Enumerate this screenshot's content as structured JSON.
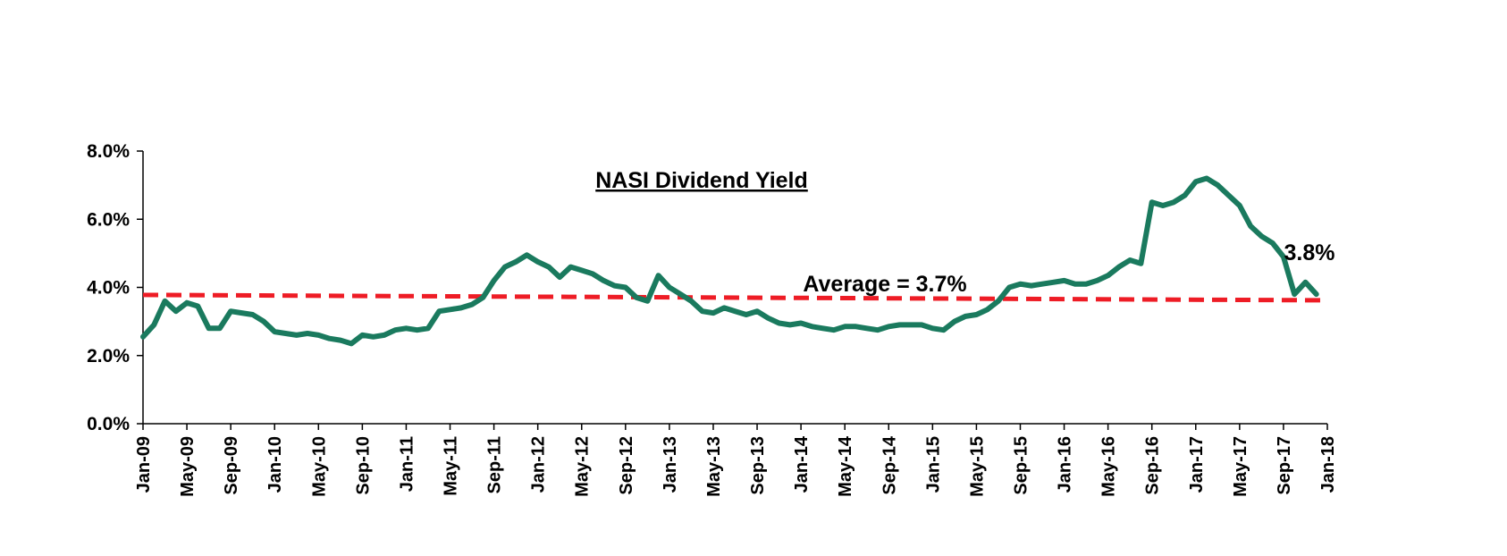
{
  "chart_data": {
    "type": "line",
    "title": "NASI Dividend Yield",
    "xlabel": "",
    "ylabel": "",
    "ylim": [
      0,
      8
    ],
    "y_unit": "%",
    "y_tick_labels": [
      "0.0%",
      "2.0%",
      "4.0%",
      "6.0%",
      "8.0%"
    ],
    "x_tick_labels": [
      "Jan-09",
      "May-09",
      "Sep-09",
      "Jan-10",
      "May-10",
      "Sep-10",
      "Jan-11",
      "May-11",
      "Sep-11",
      "Jan-12",
      "May-12",
      "Sep-12",
      "Jan-13",
      "May-13",
      "Sep-13",
      "Jan-14",
      "May-14",
      "Sep-14",
      "Jan-15",
      "May-15",
      "Sep-15",
      "Jan-16",
      "May-16",
      "Sep-16",
      "Jan-17",
      "May-17",
      "Sep-17",
      "Jan-18"
    ],
    "grid": false,
    "legend": "none",
    "series": [
      {
        "color": "#1a7a5e",
        "x": [
          "2009-01",
          "2009-02",
          "2009-03",
          "2009-04",
          "2009-05",
          "2009-06",
          "2009-07",
          "2009-08",
          "2009-09",
          "2009-10",
          "2009-11",
          "2009-12",
          "2010-01",
          "2010-02",
          "2010-03",
          "2010-04",
          "2010-05",
          "2010-06",
          "2010-07",
          "2010-08",
          "2010-09",
          "2010-10",
          "2010-11",
          "2010-12",
          "2011-01",
          "2011-02",
          "2011-03",
          "2011-04",
          "2011-05",
          "2011-06",
          "2011-07",
          "2011-08",
          "2011-09",
          "2011-10",
          "2011-11",
          "2011-12",
          "2012-01",
          "2012-02",
          "2012-03",
          "2012-04",
          "2012-05",
          "2012-06",
          "2012-07",
          "2012-08",
          "2012-09",
          "2012-10",
          "2012-11",
          "2012-12",
          "2013-01",
          "2013-02",
          "2013-03",
          "2013-04",
          "2013-05",
          "2013-06",
          "2013-07",
          "2013-08",
          "2013-09",
          "2013-10",
          "2013-11",
          "2013-12",
          "2014-01",
          "2014-02",
          "2014-03",
          "2014-04",
          "2014-05",
          "2014-06",
          "2014-07",
          "2014-08",
          "2014-09",
          "2014-10",
          "2014-11",
          "2014-12",
          "2015-01",
          "2015-02",
          "2015-03",
          "2015-04",
          "2015-05",
          "2015-06",
          "2015-07",
          "2015-08",
          "2015-09",
          "2015-10",
          "2015-11",
          "2015-12",
          "2016-01",
          "2016-02",
          "2016-03",
          "2016-04",
          "2016-05",
          "2016-06",
          "2016-07",
          "2016-08",
          "2016-09",
          "2016-10",
          "2016-11",
          "2016-12",
          "2017-01",
          "2017-02",
          "2017-03",
          "2017-04",
          "2017-05",
          "2017-06",
          "2017-07",
          "2017-08",
          "2017-09",
          "2017-10",
          "2017-11",
          "2017-12"
        ],
        "values": [
          2.55,
          2.9,
          3.6,
          3.3,
          3.55,
          3.45,
          2.8,
          2.8,
          3.3,
          3.25,
          3.2,
          3.0,
          2.7,
          2.65,
          2.6,
          2.65,
          2.6,
          2.5,
          2.45,
          2.35,
          2.6,
          2.55,
          2.6,
          2.75,
          2.8,
          2.75,
          2.8,
          3.3,
          3.35,
          3.4,
          3.5,
          3.7,
          4.2,
          4.6,
          4.75,
          4.95,
          4.75,
          4.6,
          4.3,
          4.6,
          4.5,
          4.4,
          4.2,
          4.05,
          4.0,
          3.7,
          3.6,
          4.35,
          4.0,
          3.8,
          3.6,
          3.3,
          3.25,
          3.4,
          3.3,
          3.2,
          3.3,
          3.1,
          2.95,
          2.9,
          2.95,
          2.85,
          2.8,
          2.75,
          2.85,
          2.85,
          2.8,
          2.75,
          2.85,
          2.9,
          2.9,
          2.9,
          2.8,
          2.75,
          3.0,
          3.15,
          3.2,
          3.35,
          3.6,
          4.0,
          4.1,
          4.05,
          4.1,
          4.15,
          4.2,
          4.1,
          4.1,
          4.2,
          4.35,
          4.6,
          4.8,
          4.7,
          6.5,
          6.4,
          6.5,
          6.7,
          7.1,
          7.2,
          7.0,
          6.7,
          6.4,
          5.8,
          5.5,
          5.3,
          4.9,
          3.8,
          4.15,
          3.8
        ]
      }
    ],
    "average_line": {
      "label": "Average = 3.7%",
      "color": "#ee1c25",
      "value": 3.7
    },
    "end_label": "3.8%"
  }
}
